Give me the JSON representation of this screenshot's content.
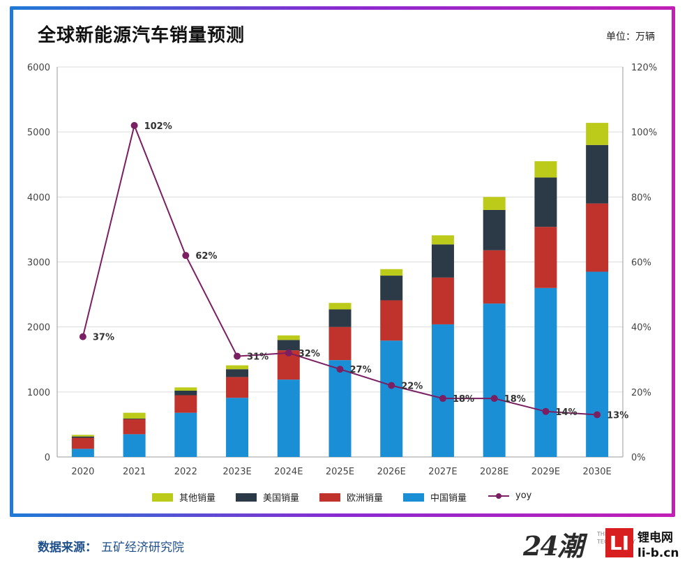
{
  "title": "全球新能源汽车销量预测",
  "unit": "单位：万辆",
  "source_label": "数据来源：",
  "source_org": "五矿经济研究院",
  "watermark": {
    "mark24": "24潮",
    "tech_lines": [
      "THE",
      "TECHNOLOGY"
    ],
    "li_logo": "LI",
    "li_name": "锂电网",
    "li_domain": "li-b.cn"
  },
  "colors": {
    "other": "#bccb1a",
    "us": "#2b3a46",
    "europe": "#c0322c",
    "china": "#1a8fd6",
    "yoy": "#7a1f62"
  },
  "chart_data": {
    "type": "bar",
    "stacked": true,
    "title": "全球新能源汽车销量预测",
    "categories": [
      "2020",
      "2021",
      "2022",
      "2023E",
      "2024E",
      "2025E",
      "2026E",
      "2027E",
      "2028E",
      "2029E",
      "2030E"
    ],
    "series": [
      {
        "name": "中国销量",
        "key": "china",
        "values": [
          125,
          350,
          680,
          910,
          1190,
          1490,
          1790,
          2040,
          2360,
          2600,
          2850
        ]
      },
      {
        "name": "欧洲销量",
        "key": "europe",
        "values": [
          170,
          230,
          270,
          320,
          450,
          510,
          620,
          720,
          820,
          940,
          1050
        ]
      },
      {
        "name": "美国销量",
        "key": "us",
        "values": [
          20,
          10,
          70,
          120,
          160,
          270,
          380,
          510,
          620,
          760,
          900
        ]
      },
      {
        "name": "其他销量",
        "key": "other",
        "values": [
          25,
          90,
          50,
          60,
          70,
          100,
          100,
          140,
          200,
          250,
          340
        ]
      }
    ],
    "line_series": {
      "name": "yoy",
      "axis": "right",
      "values": [
        37,
        102,
        62,
        31,
        32,
        27,
        22,
        18,
        18,
        14,
        13
      ],
      "labels": [
        "37%",
        "102%",
        "62%",
        "31%",
        "32%",
        "27%",
        "22%",
        "18%",
        "18%",
        "14%",
        "13%"
      ]
    },
    "ylim": [
      0,
      6000
    ],
    "yticks": [
      "0",
      "1000",
      "2000",
      "3000",
      "4000",
      "5000",
      "6000"
    ],
    "y2lim": [
      0,
      120
    ],
    "y2ticks": [
      "0%",
      "20%",
      "40%",
      "60%",
      "80%",
      "100%",
      "120%"
    ],
    "gridlines": true,
    "legend_position": "bottom",
    "legend": [
      "其他销量",
      "美国销量",
      "欧洲销量",
      "中国销量",
      "yoy"
    ]
  }
}
